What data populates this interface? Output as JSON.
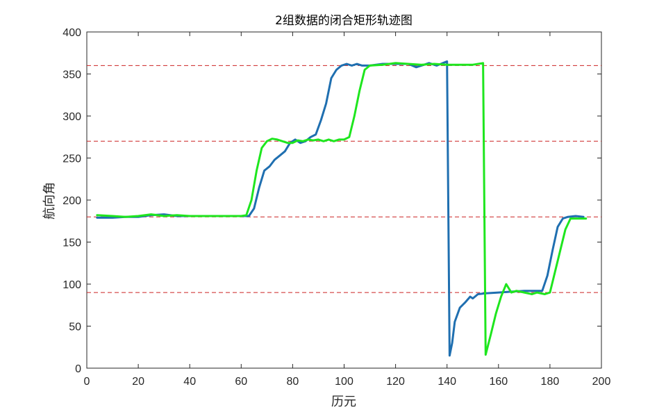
{
  "chart_data": {
    "type": "line",
    "title": "2组数据的闭合矩形轨迹图",
    "xlabel": "历元",
    "ylabel": "航向角",
    "xlim": [
      0,
      200
    ],
    "ylim": [
      0,
      400
    ],
    "xticks": [
      "0",
      "20",
      "40",
      "60",
      "80",
      "100",
      "120",
      "140",
      "160",
      "180",
      "200"
    ],
    "yticks": [
      "0",
      "50",
      "100",
      "150",
      "200",
      "250",
      "300",
      "350",
      "400"
    ],
    "grid": false,
    "reference_lines": [
      90,
      180,
      270,
      360
    ],
    "colors": {
      "series1": "#1f6fb0",
      "series2": "#1ee61e",
      "reference": "#cc2222"
    },
    "series": [
      {
        "x": [
          4,
          10,
          15,
          20,
          25,
          30,
          35,
          40,
          45,
          50,
          55,
          60,
          63,
          65,
          67,
          69,
          71,
          73,
          75,
          77,
          79,
          81,
          83,
          85,
          87,
          89,
          91,
          93,
          95,
          97,
          99,
          101,
          103,
          105,
          107,
          110,
          115,
          120,
          125,
          128,
          130,
          133,
          136,
          140,
          141,
          142,
          143,
          145,
          147,
          149,
          150,
          152,
          155,
          160,
          165,
          170,
          175,
          177,
          179,
          181,
          183,
          185,
          187,
          190,
          193
        ],
        "values": [
          179,
          179,
          180,
          180,
          182,
          183,
          181,
          181,
          181,
          181,
          181,
          181,
          181,
          190,
          215,
          235,
          240,
          248,
          253,
          258,
          268,
          272,
          268,
          270,
          275,
          278,
          295,
          315,
          345,
          355,
          360,
          362,
          360,
          362,
          360,
          360,
          362,
          362,
          362,
          358,
          360,
          363,
          360,
          365,
          15,
          30,
          55,
          72,
          78,
          85,
          83,
          88,
          89,
          90,
          91,
          92,
          92,
          92,
          110,
          140,
          168,
          178,
          180,
          181,
          180
        ]
      },
      {
        "x": [
          4,
          10,
          15,
          20,
          25,
          30,
          35,
          40,
          45,
          50,
          55,
          60,
          62,
          64,
          66,
          68,
          70,
          72,
          74,
          76,
          78,
          80,
          82,
          84,
          86,
          88,
          90,
          92,
          94,
          96,
          98,
          100,
          102,
          104,
          106,
          108,
          110,
          115,
          120,
          125,
          130,
          135,
          140,
          145,
          150,
          154,
          155,
          157,
          159,
          161,
          163,
          165,
          167,
          170,
          173,
          175,
          178,
          180,
          182,
          184,
          186,
          188,
          190,
          194
        ],
        "values": [
          182,
          181,
          180,
          181,
          183,
          181,
          182,
          181,
          181,
          181,
          181,
          181,
          182,
          200,
          235,
          262,
          270,
          273,
          272,
          270,
          268,
          268,
          271,
          270,
          272,
          271,
          272,
          270,
          272,
          270,
          272,
          272,
          275,
          300,
          330,
          355,
          360,
          361,
          363,
          362,
          361,
          362,
          361,
          361,
          361,
          363,
          16,
          40,
          65,
          85,
          100,
          90,
          92,
          90,
          88,
          90,
          88,
          90,
          115,
          140,
          165,
          178,
          178,
          178
        ]
      }
    ]
  }
}
